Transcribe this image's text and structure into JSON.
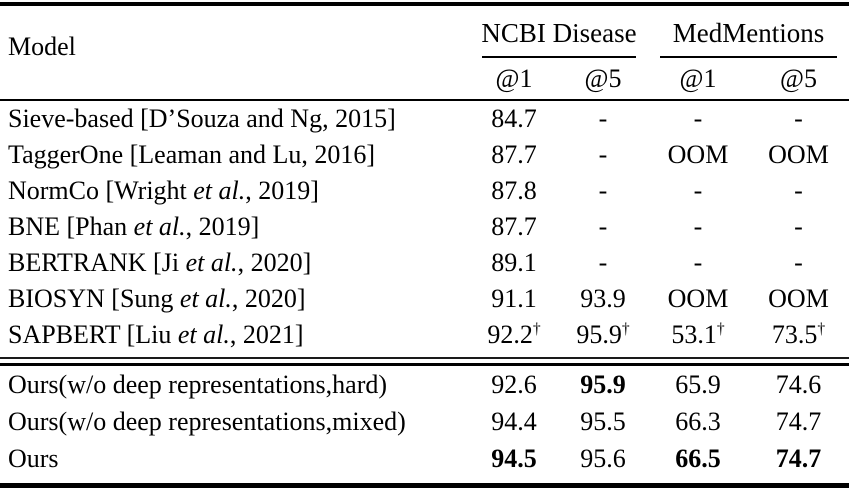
{
  "table": {
    "header": {
      "model_label": "Model",
      "groups": [
        {
          "label": "NCBI Disease"
        },
        {
          "label": "MedMentions"
        }
      ],
      "subheaders": [
        "@1",
        "@5",
        "@1",
        "@5"
      ]
    },
    "section1": [
      {
        "pre": "Sieve-based [D’Souza and Ng, 2015]",
        "values": [
          {
            "v": "84.7"
          },
          {
            "v": "-"
          },
          {
            "v": "-"
          },
          {
            "v": "-"
          }
        ]
      },
      {
        "pre": "TaggerOne [Leaman and Lu, 2016]",
        "values": [
          {
            "v": "87.7"
          },
          {
            "v": "-"
          },
          {
            "v": "OOM"
          },
          {
            "v": "OOM"
          }
        ]
      },
      {
        "pre": "NormCo [Wright ",
        "it": "et al.",
        "post": ", 2019]",
        "values": [
          {
            "v": "87.8"
          },
          {
            "v": "-"
          },
          {
            "v": "-"
          },
          {
            "v": "-"
          }
        ]
      },
      {
        "pre": "BNE [Phan ",
        "it": "et al.",
        "post": ", 2019]",
        "values": [
          {
            "v": "87.7"
          },
          {
            "v": "-"
          },
          {
            "v": "-"
          },
          {
            "v": "-"
          }
        ]
      },
      {
        "pre": "BERTRANK [Ji ",
        "it": "et al.",
        "post": ", 2020]",
        "values": [
          {
            "v": "89.1"
          },
          {
            "v": "-"
          },
          {
            "v": "-"
          },
          {
            "v": "-"
          }
        ]
      },
      {
        "pre": "BIOSYN [Sung ",
        "it": "et al.",
        "post": ", 2020]",
        "values": [
          {
            "v": "91.1"
          },
          {
            "v": "93.9"
          },
          {
            "v": "OOM"
          },
          {
            "v": "OOM"
          }
        ]
      },
      {
        "pre": "SAPBERT [Liu ",
        "it": "et al.",
        "post": ", 2021]",
        "values": [
          {
            "v": "92.2",
            "sup": "†"
          },
          {
            "v": "95.9",
            "sup": "†"
          },
          {
            "v": "53.1",
            "sup": "†"
          },
          {
            "v": "73.5",
            "sup": "†"
          }
        ]
      }
    ],
    "section2": [
      {
        "pre": "Ours(w/o deep representations,hard)",
        "values": [
          {
            "v": "92.6"
          },
          {
            "v": "95.9",
            "b": true
          },
          {
            "v": "65.9"
          },
          {
            "v": "74.6"
          }
        ]
      },
      {
        "pre": "Ours(w/o deep representations,mixed)",
        "values": [
          {
            "v": "94.4"
          },
          {
            "v": "95.5"
          },
          {
            "v": "66.3"
          },
          {
            "v": "74.7"
          }
        ]
      },
      {
        "pre": "Ours",
        "values": [
          {
            "v": "94.5",
            "b": true
          },
          {
            "v": "95.6"
          },
          {
            "v": "66.5",
            "b": true
          },
          {
            "v": "74.7",
            "b": true
          }
        ]
      }
    ],
    "colors": {
      "text": "#000000",
      "background": "#ffffff",
      "rule": "#000000"
    }
  }
}
